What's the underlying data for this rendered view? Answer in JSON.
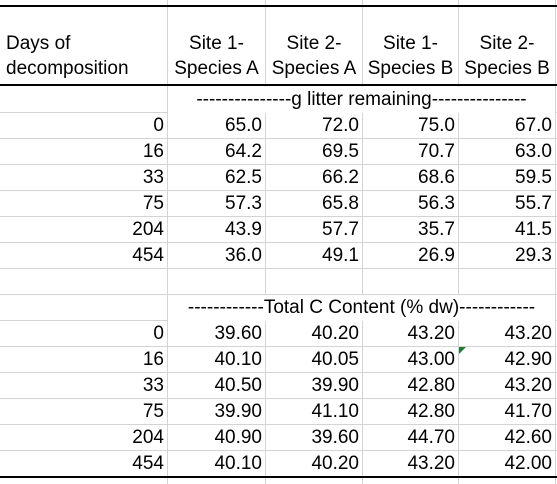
{
  "header": {
    "days_label_line1": "Days of",
    "days_label_line2": "decomposition",
    "columns": [
      {
        "line1": "Site 1-",
        "line2": "Species A"
      },
      {
        "line1": "Site 2-",
        "line2": "Species A"
      },
      {
        "line1": "Site 1-",
        "line2": "Species B"
      },
      {
        "line1": "Site 2-",
        "line2": "Species B"
      }
    ]
  },
  "section1": {
    "title": "---------------g litter remaining---------------",
    "rows": [
      {
        "day": "0",
        "values": [
          "65.0",
          "72.0",
          "75.0",
          "67.0"
        ]
      },
      {
        "day": "16",
        "values": [
          "64.2",
          "69.5",
          "70.7",
          "63.0"
        ]
      },
      {
        "day": "33",
        "values": [
          "62.5",
          "66.2",
          "68.6",
          "59.5"
        ]
      },
      {
        "day": "75",
        "values": [
          "57.3",
          "65.8",
          "56.3",
          "55.7"
        ]
      },
      {
        "day": "204",
        "values": [
          "43.9",
          "57.7",
          "35.7",
          "41.5"
        ]
      },
      {
        "day": "454",
        "values": [
          "36.0",
          "49.1",
          "26.9",
          "29.3"
        ]
      }
    ]
  },
  "section2": {
    "title": "------------Total C Content (% dw)------------",
    "rows": [
      {
        "day": "0",
        "values": [
          "39.60",
          "40.20",
          "43.20",
          "43.20"
        ]
      },
      {
        "day": "16",
        "values": [
          "40.10",
          "40.05",
          "43.00",
          "42.90"
        ]
      },
      {
        "day": "33",
        "values": [
          "40.50",
          "39.90",
          "42.80",
          "43.20"
        ]
      },
      {
        "day": "75",
        "values": [
          "39.90",
          "41.10",
          "42.80",
          "41.70"
        ]
      },
      {
        "day": "204",
        "values": [
          "40.90",
          "39.60",
          "44.70",
          "42.60"
        ]
      },
      {
        "day": "454",
        "values": [
          "40.10",
          "40.20",
          "43.20",
          "42.00"
        ]
      }
    ]
  },
  "colors": {
    "gridline": "#d4d4d4",
    "border": "#000000",
    "comment_indicator": "#1e7d32"
  }
}
